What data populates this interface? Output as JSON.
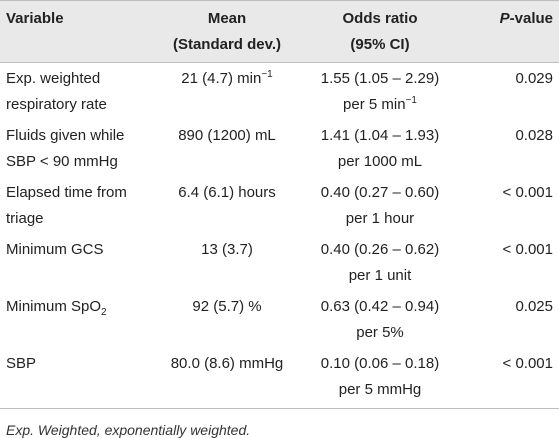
{
  "headers": {
    "variable": "Variable",
    "mean_line1": "Mean",
    "mean_line2": "(Standard dev.)",
    "or_line1": "Odds ratio",
    "or_line2": "(95% CI)",
    "p_italic": "P",
    "p_rest": "-value"
  },
  "rows": [
    {
      "var_line1": "Exp. weighted",
      "var_line2": "respiratory rate",
      "mean_main": "21 (4.7) min",
      "mean_sup": "−1",
      "or_line1": "1.55 (1.05 – 2.29)",
      "or_line2_main": "per 5 min",
      "or_line2_sup": "−1",
      "p": "0.029"
    },
    {
      "var_line1": "Fluids given while",
      "var_line2": "SBP < 90 mmHg",
      "mean_main": "890 (1200) mL",
      "or_line1": "1.41 (1.04 – 1.93)",
      "or_line2_main": "per 1000 mL",
      "p": "0.028"
    },
    {
      "var_line1": "Elapsed time from",
      "var_line2": "triage",
      "mean_main": "6.4 (6.1) hours",
      "or_line1": "0.40 (0.27 – 0.60)",
      "or_line2_main": "per 1 hour",
      "p": "< 0.001"
    },
    {
      "var_line1": "Minimum GCS",
      "mean_main": "13 (3.7)",
      "or_line1": "0.40 (0.26 – 0.62)",
      "or_line2_main": "per 1 unit",
      "p": "< 0.001"
    },
    {
      "var_line1_main": "Minimum SpO",
      "var_line1_sub": "2",
      "mean_main": "92 (5.7) %",
      "or_line1": "0.63 (0.42 – 0.94)",
      "or_line2_main": "per 5%",
      "p": "0.025"
    },
    {
      "var_line1": "SBP",
      "mean_main": "80.0 (8.6) mmHg",
      "or_line1": "0.10 (0.06 – 0.18)",
      "or_line2_main": "per 5 mmHg",
      "p": "< 0.001"
    }
  ],
  "footnote": "Exp. Weighted, exponentially weighted."
}
